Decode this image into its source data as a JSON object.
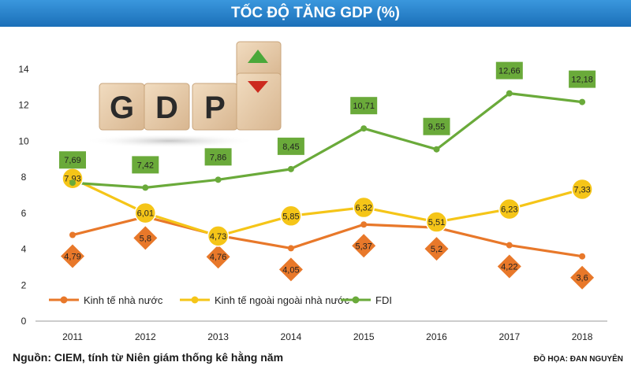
{
  "title": "TỐC ĐỘ TĂNG GDP (%)",
  "source": "Nguồn: CIEM, tính từ Niên giám thống kê hằng năm",
  "credit": "ĐỒ HỌA: ĐAN NGUYÊN",
  "decoration": {
    "blocks": [
      "G",
      "D",
      "P"
    ],
    "arrow_up_color": "#4aa83a",
    "arrow_down_color": "#cc2a1e"
  },
  "chart_data": {
    "type": "line",
    "categories": [
      "2011",
      "2012",
      "2013",
      "2014",
      "2015",
      "2016",
      "2017",
      "2018"
    ],
    "ylim": [
      0,
      14
    ],
    "yticks": [
      "0",
      "2",
      "4",
      "6",
      "8",
      "10",
      "12",
      "14"
    ],
    "grid": false,
    "legend_position": "bottom",
    "series": [
      {
        "name": "Kinh tế nhà nước",
        "color": "#e8782a",
        "marker": "diamond",
        "values": [
          4.79,
          5.8,
          4.76,
          4.05,
          5.37,
          5.2,
          4.22,
          3.6
        ],
        "labels": [
          "4,79",
          "5,8",
          "4,76",
          "4,05",
          "5,37",
          "5,2",
          "4,22",
          "3,6"
        ]
      },
      {
        "name": "Kinh tế ngoài ngoài nhà nước",
        "color": "#f5c518",
        "marker": "circle",
        "values": [
          7.93,
          6.01,
          4.73,
          5.85,
          6.32,
          5.51,
          6.23,
          7.33
        ],
        "labels": [
          "7,93",
          "6,01",
          "4,73",
          "5,85",
          "6,32",
          "5,51",
          "6,23",
          "7,33"
        ]
      },
      {
        "name": "FDI",
        "color": "#6aaa3a",
        "marker": "square",
        "values": [
          7.69,
          7.42,
          7.86,
          8.45,
          10.71,
          9.55,
          12.66,
          12.18
        ],
        "labels": [
          "7,69",
          "7,42",
          "7,86",
          "8,45",
          "10,71",
          "9,55",
          "12,66",
          "12,18"
        ]
      }
    ]
  }
}
